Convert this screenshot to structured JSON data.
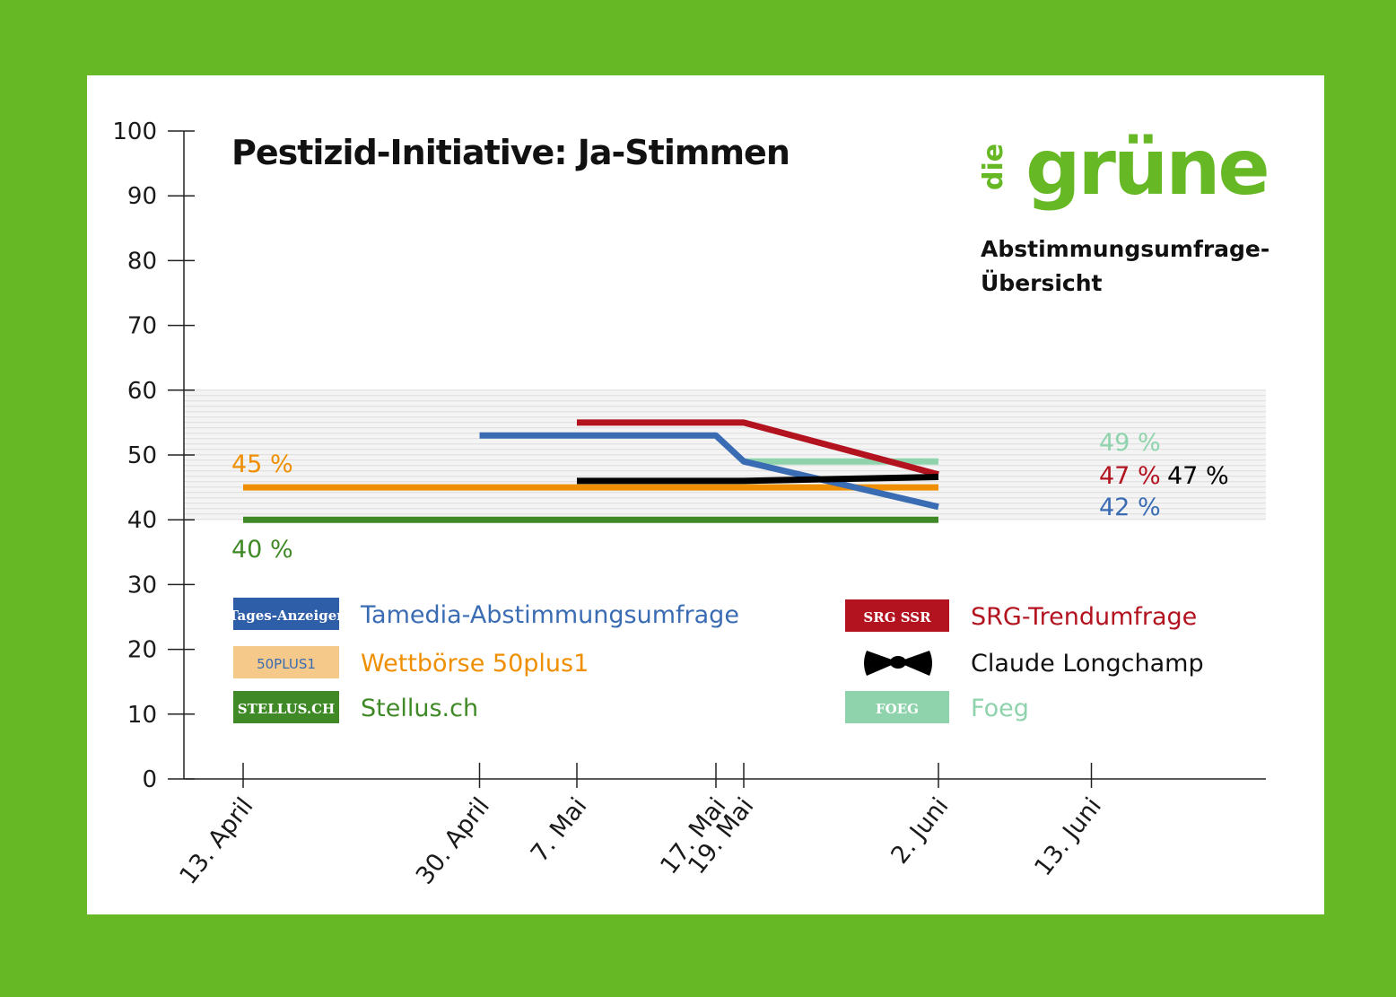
{
  "chart_data": {
    "type": "line",
    "title": "Pestizid-Initiative: Ja-Stimmen",
    "y_ticks": [
      "100",
      "90",
      "80",
      "70",
      "60",
      "50",
      "40",
      "30",
      "20",
      "10",
      "0"
    ],
    "ylim": [
      0,
      100
    ],
    "x_dates": [
      "13. April",
      "30. April",
      "7. Mai",
      "17. Mai",
      "19. Mai",
      "2. Juni",
      "13. Juni"
    ],
    "x_date_days": [
      13,
      30,
      37,
      47,
      49,
      63,
      74
    ],
    "shaded_band": [
      40,
      60
    ],
    "series": [
      {
        "name": "Tamedia-Abstimmungsumfrage",
        "color": "#3a6cb4",
        "points": [
          [
            "30. April",
            53
          ],
          [
            "17. Mai",
            53
          ],
          [
            "19. Mai",
            49
          ],
          [
            "2. Juni",
            42
          ]
        ],
        "end_label": "42 %"
      },
      {
        "name": "SRG-Trendumfrage",
        "color": "#b3121f",
        "points": [
          [
            "7. Mai",
            55
          ],
          [
            "19. Mai",
            55
          ],
          [
            "2. Juni",
            47
          ]
        ],
        "end_label": "47 %"
      },
      {
        "name": "Claude Longchamp",
        "color": "#000000",
        "points": [
          [
            "7. Mai",
            46
          ],
          [
            "19. Mai",
            46
          ],
          [
            "2. Juni",
            46.6
          ]
        ],
        "end_label": "47 %"
      },
      {
        "name": "Foeg",
        "color": "#8fd3ad",
        "points": [
          [
            "19. Mai",
            49
          ],
          [
            "2. Juni",
            49
          ]
        ],
        "end_label": "49 %"
      },
      {
        "name": "Wettbörse 50plus1",
        "color": "#ef8f00",
        "points": [
          [
            "13. April",
            45
          ],
          [
            "2. Juni",
            45
          ]
        ],
        "start_label": "45 %"
      },
      {
        "name": "Stellus.ch",
        "color": "#3f8a26",
        "points": [
          [
            "13. April",
            40
          ],
          [
            "2. Juni",
            40
          ]
        ],
        "start_label": "40 %"
      }
    ]
  },
  "brand": {
    "logo_small": "die",
    "logo_big": "grüne",
    "subtitle_line1": "Abstimmungsumfrage-",
    "subtitle_line2": "Übersicht"
  },
  "legend": {
    "left": [
      {
        "label": "Tamedia-Abstimmungsumfrage",
        "badge": "Tages-Anzeiger",
        "badge_bg": "#2f5ea8",
        "color": "#3a6cb4"
      },
      {
        "label": "Wettbörse 50plus1",
        "badge": "50PLUS1",
        "badge_bg": "#f4c98a",
        "color": "#ef8f00"
      },
      {
        "label": "Stellus.ch",
        "badge": "STELLUS.CH",
        "badge_bg": "#3f8a26",
        "color": "#3f8a26"
      }
    ],
    "right": [
      {
        "label": "SRG-Trendumfrage",
        "badge": "SRG SSR",
        "badge_bg": "#b3121f",
        "color": "#b3121f"
      },
      {
        "label": "Claude Longchamp",
        "badge": "bowtie-icon",
        "badge_bg": "",
        "color": "#111111"
      },
      {
        "label": "Foeg",
        "badge": "FOEG",
        "badge_bg": "#8fd3ad",
        "color": "#8fd3ad"
      }
    ]
  },
  "colors": {
    "background": "#66b825",
    "card": "#ffffff"
  }
}
